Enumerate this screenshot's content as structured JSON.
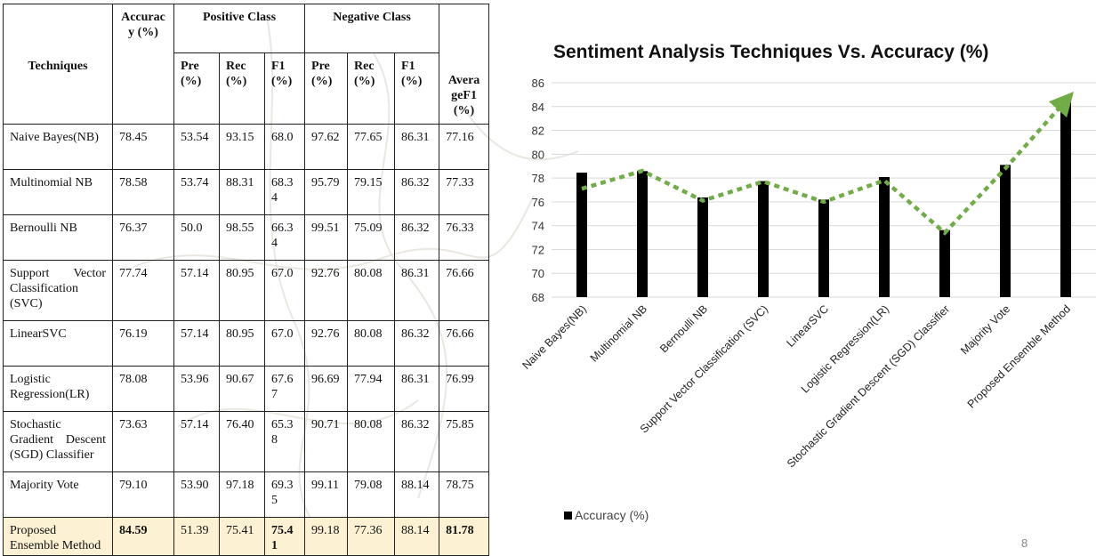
{
  "table": {
    "headers": {
      "techniques": "Techniques",
      "accuracy": "Accuracy (%)",
      "positive_class": "Positive Class",
      "negative_class": "Negative Class",
      "average_f1": "AverageF1 (%)",
      "pre": "Pre(%)",
      "rec": "Rec(%)",
      "f1": "F1(%)"
    },
    "rows": [
      {
        "technique": "Naive Bayes(NB)",
        "accuracy": "78.45",
        "pos_pre": "53.54",
        "pos_rec": "93.15",
        "pos_f1": "68.0",
        "neg_pre": "97.62",
        "neg_rec": "77.65",
        "neg_f1": "86.31",
        "avg_f1": "77.16"
      },
      {
        "technique": "Multinomial NB",
        "accuracy": "78.58",
        "pos_pre": "53.74",
        "pos_rec": "88.31",
        "pos_f1": "68.34",
        "neg_pre": "95.79",
        "neg_rec": "79.15",
        "neg_f1": "86.32",
        "avg_f1": "77.33"
      },
      {
        "technique": "Bernoulli NB",
        "accuracy": "76.37",
        "pos_pre": "50.0",
        "pos_rec": "98.55",
        "pos_f1": "66.34",
        "neg_pre": "99.51",
        "neg_rec": "75.09",
        "neg_f1": "86.32",
        "avg_f1": "76.33"
      },
      {
        "technique": "Support Vector Classification (SVC)",
        "accuracy": "77.74",
        "pos_pre": "57.14",
        "pos_rec": "80.95",
        "pos_f1": "67.0",
        "neg_pre": "92.76",
        "neg_rec": "80.08",
        "neg_f1": "86.31",
        "avg_f1": "76.66"
      },
      {
        "technique": "LinearSVC",
        "accuracy": "76.19",
        "pos_pre": "57.14",
        "pos_rec": "80.95",
        "pos_f1": "67.0",
        "neg_pre": "92.76",
        "neg_rec": "80.08",
        "neg_f1": "86.32",
        "avg_f1": "76.66"
      },
      {
        "technique": "Logistic Regression(LR)",
        "accuracy": "78.08",
        "pos_pre": "53.96",
        "pos_rec": "90.67",
        "pos_f1": "67.67",
        "neg_pre": "96.69",
        "neg_rec": "77.94",
        "neg_f1": "86.31",
        "avg_f1": "76.99"
      },
      {
        "technique": "Stochastic Gradient Descent (SGD) Classifier",
        "accuracy": "73.63",
        "pos_pre": "57.14",
        "pos_rec": "76.40",
        "pos_f1": "65.38",
        "neg_pre": "90.71",
        "neg_rec": "80.08",
        "neg_f1": "86.32",
        "avg_f1": "75.85"
      },
      {
        "technique": "Majority Vote",
        "accuracy": "79.10",
        "pos_pre": "53.90",
        "pos_rec": "97.18",
        "pos_f1": "69.35",
        "neg_pre": "99.11",
        "neg_rec": "79.08",
        "neg_f1": "88.14",
        "avg_f1": "78.75"
      },
      {
        "technique": "Proposed Ensemble Method",
        "accuracy": "84.59",
        "pos_pre": "51.39",
        "pos_rec": "75.41",
        "pos_f1": "75.41",
        "neg_pre": "99.18",
        "neg_rec": "77.36",
        "neg_f1": "88.14",
        "avg_f1": "81.78"
      }
    ],
    "highlight_color": "#fdf1d3"
  },
  "chart_data": {
    "type": "bar",
    "title": "Sentiment Analysis Techniques Vs. Accuracy (%)",
    "categories": [
      "Naive Bayes(NB)",
      "Multinomial NB",
      "Bernoulli NB",
      "Support Vector Classification (SVC)",
      "LinearSVC",
      "Logistic Regression(LR)",
      "Stochastic Gradient Descent (SGD) Classifier",
      "Majority Vote",
      "Proposed Ensemble Method"
    ],
    "series": [
      {
        "name": "Accuracy (%)",
        "values": [
          78.45,
          78.58,
          76.37,
          77.74,
          76.19,
          78.08,
          73.63,
          79.1,
          84.59
        ],
        "color": "#000000"
      }
    ],
    "trend_overlay": {
      "type": "dotted-arrow-line",
      "color": "#70ad47",
      "values": [
        77.1,
        78.6,
        76.1,
        77.7,
        76.0,
        77.8,
        73.4,
        78.8,
        84.5
      ]
    },
    "ylim": [
      68,
      86
    ],
    "yticks": [
      68,
      70,
      72,
      74,
      76,
      78,
      80,
      82,
      84,
      86
    ],
    "grid": true,
    "legend_position": "bottom-left",
    "xlabel": "",
    "ylabel": ""
  },
  "slide_number": "8"
}
